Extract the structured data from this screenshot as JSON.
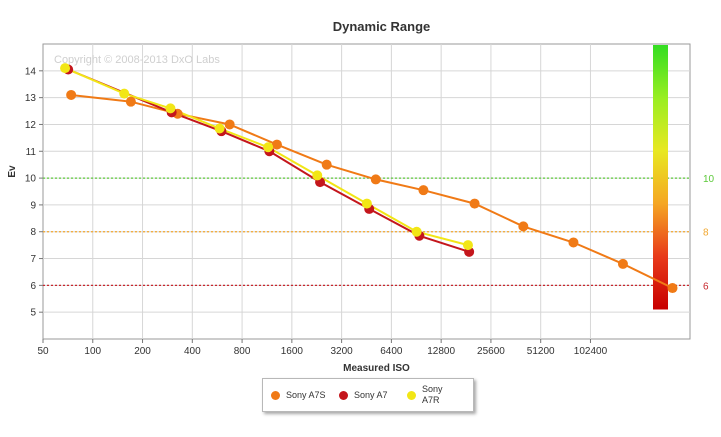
{
  "chart_data": {
    "type": "line",
    "title": "Dynamic Range",
    "watermark": "Copyright © 2008-2013 DxO Labs",
    "xlabel": "Measured ISO",
    "ylabel": "Ev",
    "x_scale": "log2",
    "x_ticks": [
      50,
      100,
      200,
      400,
      800,
      1600,
      3200,
      6400,
      12800,
      25600,
      51200,
      102400
    ],
    "x_tick_labels": [
      "50",
      "100",
      "200",
      "400",
      "800",
      "1600",
      "3200",
      "6400",
      "12800",
      "25600",
      "51200",
      "102400"
    ],
    "xlim": [
      50,
      409600
    ],
    "ylim": [
      4,
      15
    ],
    "y_ticks": [
      5,
      6,
      7,
      8,
      9,
      10,
      11,
      12,
      13,
      14
    ],
    "grid": true,
    "reference_lines": [
      {
        "value": 10,
        "label": "10",
        "color": "#5cc93a"
      },
      {
        "value": 8,
        "label": "8",
        "color": "#f2a72e"
      },
      {
        "value": 6,
        "label": "6",
        "color": "#c8272d"
      }
    ],
    "color_scale": {
      "stops": [
        "#33dd22",
        "#99ee22",
        "#e8e822",
        "#f5a623",
        "#e83a1a",
        "#c80000"
      ]
    },
    "legend_position": "bottom",
    "series": [
      {
        "name": "Sony A7S",
        "color": "#f07a16",
        "x": [
          74,
          170,
          326,
          673,
          1300,
          2600,
          5150,
          10000,
          20400,
          40200,
          80800,
          161000,
          321000
        ],
        "y": [
          13.1,
          12.85,
          12.4,
          12.0,
          11.25,
          10.5,
          9.95,
          9.55,
          9.05,
          8.2,
          7.6,
          6.8,
          5.9
        ]
      },
      {
        "name": "Sony A7",
        "color": "#c4161c",
        "x": [
          71,
          300,
          600,
          1170,
          2370,
          4700,
          9450,
          18900
        ],
        "y": [
          14.05,
          12.45,
          11.75,
          11.0,
          9.85,
          8.85,
          7.85,
          7.25
        ]
      },
      {
        "name": "Sony\nA7R",
        "color": "#f2e616",
        "x": [
          68,
          155,
          295,
          585,
          1150,
          2280,
          4550,
          9100,
          18600
        ],
        "y": [
          14.1,
          13.15,
          12.6,
          11.85,
          11.15,
          10.1,
          9.05,
          8.0,
          7.5
        ]
      }
    ]
  }
}
